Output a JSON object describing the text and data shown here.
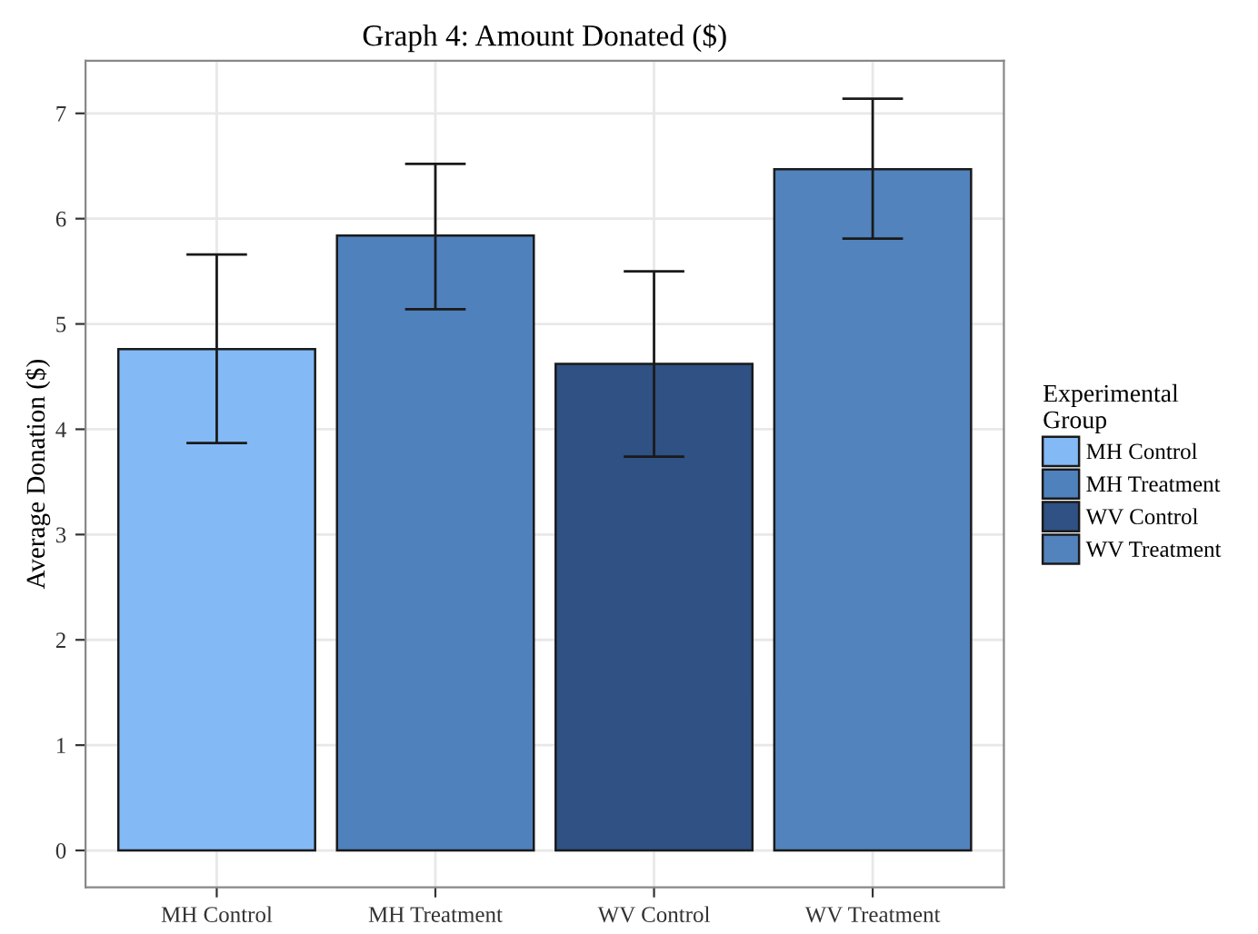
{
  "chart_data": {
    "type": "bar",
    "title": "Graph 4: Amount Donated ($)",
    "ylabel": "Average Donation ($)",
    "legend_title": "Experimental\nGroup",
    "categories": [
      "MH Control",
      "MH Treatment",
      "WV Control",
      "WV Treatment"
    ],
    "series": [
      {
        "name": "MH Control",
        "color": "#83b9f5",
        "values": [
          4.76,
          null,
          null,
          null
        ],
        "errors": [
          [
            3.87,
            5.66
          ],
          null,
          null,
          null
        ]
      },
      {
        "name": "MH Treatment",
        "color": "#4f81bd",
        "values": [
          null,
          5.84,
          null,
          null
        ],
        "errors": [
          null,
          [
            5.14,
            6.52
          ],
          null,
          null
        ]
      },
      {
        "name": "WV Control",
        "color": "#2f5183",
        "values": [
          null,
          null,
          4.62,
          null
        ],
        "errors": [
          null,
          null,
          [
            3.74,
            5.5
          ],
          null
        ]
      },
      {
        "name": "WV Treatment",
        "color": "#5283bc",
        "values": [
          null,
          null,
          null,
          6.47
        ],
        "errors": [
          null,
          null,
          null,
          [
            5.81,
            7.14
          ]
        ]
      }
    ],
    "ylim": [
      -0.35,
      7.5
    ],
    "yticks": [
      0,
      1,
      2,
      3,
      4,
      5,
      6,
      7
    ],
    "grid": true,
    "legend": "right"
  }
}
